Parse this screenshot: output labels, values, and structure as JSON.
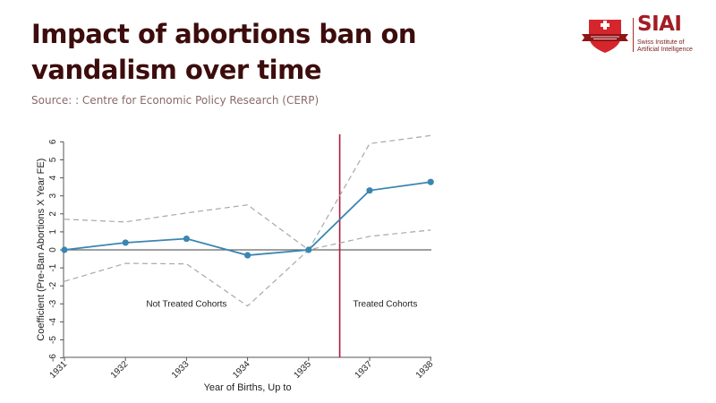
{
  "header": {
    "title": "Impact of abortions ban on vandalism over time",
    "source": "Source: : Centre for Economic Policy Research (CERP)"
  },
  "logo": {
    "name": "SIAI",
    "subtitle": "Swiss Institute of Artificial Intelligence",
    "icon": "swiss-cross-shield-icon",
    "brand_color": "#a41c24"
  },
  "chart_data": {
    "type": "line",
    "title": "Impact of abortions ban on vandalism over time",
    "xlabel": "Year of Births, Up to",
    "ylabel": "Coefficient (Pre-Ban Abortions X Year FE)",
    "x": [
      "1931",
      "1932",
      "1933",
      "1934",
      "1935",
      "1937",
      "1938"
    ],
    "ylim": [
      -6,
      6.4
    ],
    "yticks": [
      6,
      5,
      4,
      3,
      2,
      1,
      0,
      -1,
      -2,
      -3,
      -4,
      -5,
      -6
    ],
    "grid": false,
    "series": [
      {
        "name": "Coefficient",
        "style": "solid-markers",
        "color": "#3a86b0",
        "values": [
          0,
          0.4,
          0.62,
          -0.3,
          0,
          3.3,
          3.77
        ]
      },
      {
        "name": "Upper 95% CI",
        "style": "dashed",
        "color": "#a8a8a8",
        "values": [
          1.7,
          1.55,
          2.05,
          2.5,
          0,
          5.9,
          6.35
        ]
      },
      {
        "name": "Lower 95% CI",
        "style": "dashed",
        "color": "#a8a8a8",
        "values": [
          -1.75,
          -0.75,
          -0.78,
          -3.12,
          0,
          0.75,
          1.1
        ]
      }
    ],
    "reference_line": {
      "axis": "y",
      "value": 0,
      "color": "#666666"
    },
    "treatment_line": {
      "axis": "x",
      "between": [
        "1935",
        "1937"
      ],
      "position_fraction": 0.51,
      "color": "#b0183c"
    },
    "annotations": [
      {
        "text": "Not Treated Cohorts",
        "x_between": [
          "1932",
          "1934"
        ],
        "y": -3
      },
      {
        "text": "Treated Cohorts",
        "x_between": [
          "1935",
          "1938"
        ],
        "y": -3
      }
    ]
  }
}
